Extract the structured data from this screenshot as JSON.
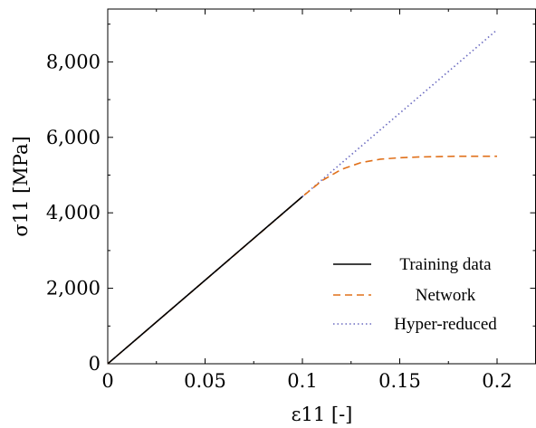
{
  "chart_data": {
    "type": "line",
    "xlabel": "ε11 [-]",
    "ylabel": "σ11 [MPa]",
    "xlim": [
      0,
      0.22
    ],
    "ylim": [
      0,
      9400
    ],
    "x_ticks": [
      0,
      0.05,
      0.1,
      0.15,
      0.2
    ],
    "x_tick_labels": [
      "0",
      "0.05",
      "0.1",
      "0.15",
      "0.2"
    ],
    "y_ticks": [
      0,
      2000,
      4000,
      6000,
      8000
    ],
    "y_tick_labels": [
      "0",
      "2,000",
      "4,000",
      "6,000",
      "8,000"
    ],
    "grid": false,
    "legend_position": "bottom-right",
    "series": [
      {
        "name": "Training data",
        "style": "solid",
        "color": "#000000",
        "x": [
          0,
          0.1
        ],
        "y": [
          0,
          4430
        ]
      },
      {
        "name": "Network",
        "style": "dashed",
        "color": "#e0701a",
        "x": [
          0,
          0.02,
          0.04,
          0.06,
          0.08,
          0.1,
          0.11,
          0.12,
          0.13,
          0.14,
          0.15,
          0.16,
          0.17,
          0.18,
          0.19,
          0.2
        ],
        "y": [
          0,
          885,
          1770,
          2655,
          3540,
          4430,
          4850,
          5150,
          5330,
          5420,
          5460,
          5480,
          5490,
          5500,
          5500,
          5500
        ]
      },
      {
        "name": "Hyper-reduced",
        "style": "dotted",
        "color": "#6a6ac0",
        "x": [
          0,
          0.1,
          0.2
        ],
        "y": [
          0,
          4430,
          8850
        ]
      }
    ]
  }
}
